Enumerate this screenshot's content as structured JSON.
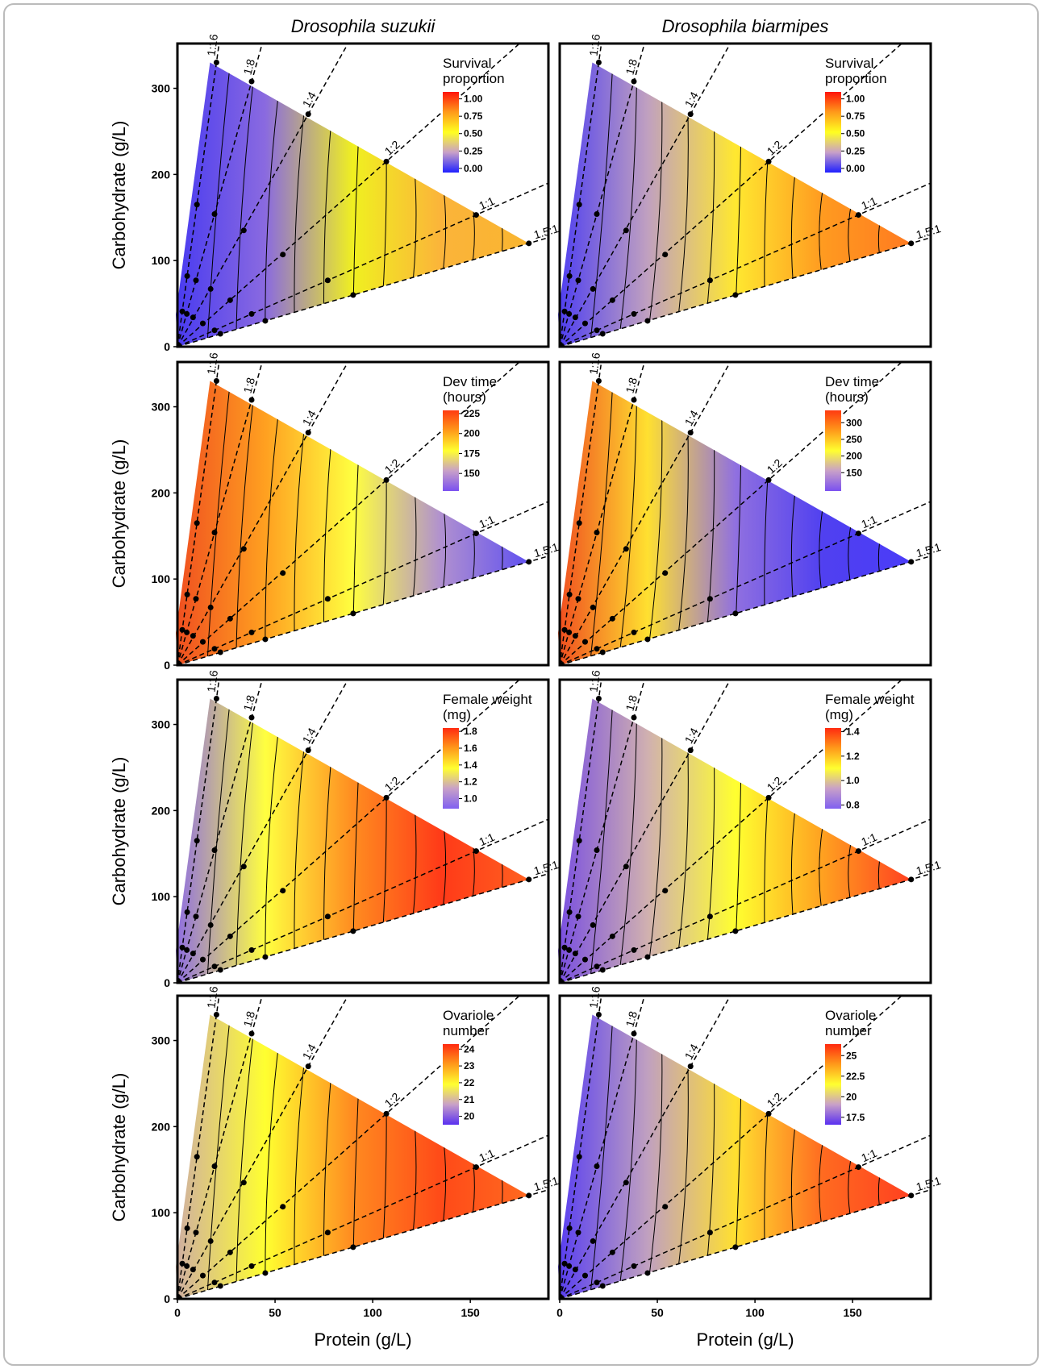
{
  "rails": [
    {
      "label": "1:16",
      "x": [
        2.5,
        5,
        10,
        20
      ],
      "y": [
        41,
        82,
        165,
        330
      ]
    },
    {
      "label": "1:8",
      "x": [
        4.8,
        9.5,
        19,
        38
      ],
      "y": [
        38,
        77,
        154,
        308
      ]
    },
    {
      "label": "1:4",
      "x": [
        8,
        17,
        34,
        67
      ],
      "y": [
        34,
        67,
        135,
        270
      ]
    },
    {
      "label": "1:2",
      "x": [
        13,
        27,
        54,
        107
      ],
      "y": [
        27,
        54,
        107,
        215
      ]
    },
    {
      "label": "1:1",
      "x": [
        19,
        38,
        77,
        153
      ],
      "y": [
        19,
        38,
        77,
        153
      ]
    },
    {
      "label": "1.5:1",
      "x": [
        22,
        45,
        90,
        180
      ],
      "y": [
        15,
        30,
        60,
        120
      ]
    }
  ],
  "chart_data": [
    {
      "type": "heatmap",
      "title": "Drosophila suzukii",
      "legend_title": [
        "Survival",
        "proportion"
      ],
      "xlim": [
        0,
        190
      ],
      "ylim": [
        0,
        352
      ],
      "ylabel": "Carbohydrate (g/L)",
      "yticks": [
        0,
        100,
        200,
        300
      ],
      "clim": [
        -0.06,
        1.1
      ],
      "cticks": [
        {
          "value": 1,
          "label": "1.00"
        },
        0.75,
        {
          "value": 0.5,
          "label": "0.50"
        },
        0.25,
        {
          "value": 0,
          "label": "0.00"
        }
      ],
      "colorbar": [
        "#ff140a",
        "#ff9a1a",
        "#ffff20",
        "#c8a0c8",
        "#2020ff"
      ],
      "fill_colors": [
        "#4a3cf0",
        "#8a6ae0",
        "#f0f020",
        "#fbb43a",
        "#f9b530"
      ]
    },
    {
      "type": "heatmap",
      "title": "Drosophila biarmipes",
      "legend_title": [
        "Survival",
        "proportion"
      ],
      "xlim": [
        0,
        190
      ],
      "ylim": [
        0,
        352
      ],
      "clim": [
        -0.06,
        1.1
      ],
      "cticks": [
        {
          "value": 1,
          "label": "1.00"
        },
        0.75,
        {
          "value": 0.5,
          "label": "0.50"
        },
        0.25,
        {
          "value": 0,
          "label": "0.00"
        }
      ],
      "colorbar": [
        "#ff140a",
        "#ff9a1a",
        "#ffff20",
        "#c8a0c8",
        "#2020ff"
      ],
      "fill_colors": [
        "#5040f0",
        "#c0a0c0",
        "#ffe830",
        "#ff9a20",
        "#ff7a20"
      ]
    },
    {
      "type": "heatmap",
      "legend_title": [
        "Dev time",
        "(hours)"
      ],
      "xlim": [
        0,
        190
      ],
      "ylim": [
        0,
        352
      ],
      "ylabel": "Carbohydrate (g/L)",
      "yticks": [
        0,
        100,
        200,
        300
      ],
      "clim": [
        128,
        229
      ],
      "cticks": [
        225,
        200,
        175,
        150
      ],
      "colorbar": [
        "#ff3a10",
        "#ff9a1a",
        "#ffff30",
        "#c8a0c8",
        "#7a50f0"
      ],
      "fill_colors": [
        "#f05020",
        "#ffa020",
        "#ffff40",
        "#b090d0",
        "#6050f0"
      ]
    },
    {
      "type": "heatmap",
      "legend_title": [
        "Dev time",
        "(hours)"
      ],
      "xlim": [
        0,
        190
      ],
      "ylim": [
        0,
        352
      ],
      "clim": [
        95,
        337
      ],
      "cticks": [
        300,
        250,
        200,
        150
      ],
      "colorbar": [
        "#ff3a10",
        "#ff9a1a",
        "#ffff30",
        "#c8a0c8",
        "#7a50f0"
      ],
      "fill_colors": [
        "#f05020",
        "#ffe030",
        "#9070e0",
        "#5040f0",
        "#4a3cf8"
      ]
    },
    {
      "type": "heatmap",
      "legend_title": [
        "Female weight",
        "(mg)"
      ],
      "xlim": [
        0,
        190
      ],
      "ylim": [
        0,
        352
      ],
      "ylabel": "Carbohydrate (g/L)",
      "yticks": [
        0,
        100,
        200,
        300
      ],
      "clim": [
        0.88,
        1.84
      ],
      "cticks": [
        1.8,
        1.6,
        1.4,
        1.2,
        {
          "value": 1,
          "label": "1.0"
        }
      ],
      "colorbar": [
        "#ff2a10",
        "#ff9a1a",
        "#ffff30",
        "#c8a0c8",
        "#8060f0"
      ],
      "fill_colors": [
        "#9070e0",
        "#ffff40",
        "#ff8c20",
        "#ff3a18",
        "#ff6020"
      ]
    },
    {
      "type": "heatmap",
      "legend_title": [
        "Female weight",
        "(mg)"
      ],
      "xlim": [
        0,
        190
      ],
      "ylim": [
        0,
        352
      ],
      "clim": [
        0.77,
        1.43
      ],
      "cticks": [
        1.4,
        1.2,
        {
          "value": 1,
          "label": "1.0"
        },
        0.8
      ],
      "colorbar": [
        "#ff2a10",
        "#ff9a1a",
        "#ffff30",
        "#c8a0c8",
        "#8060f0"
      ],
      "fill_colors": [
        "#7a50e0",
        "#d0b0b0",
        "#ffff30",
        "#ffa020",
        "#ff4020"
      ]
    },
    {
      "type": "heatmap",
      "legend_title": [
        "Ovariole",
        "number"
      ],
      "xlim": [
        0,
        190
      ],
      "ylim": [
        0,
        352
      ],
      "ylabel": "Carbohydrate (g/L)",
      "yticks": [
        0,
        100,
        200,
        300
      ],
      "xlabel": "Protein (g/L)",
      "xticks": [
        0,
        50,
        100,
        150
      ],
      "clim": [
        19.5,
        24.3
      ],
      "cticks": [
        24,
        23,
        22,
        21,
        20
      ],
      "colorbar": [
        "#ff2a10",
        "#ff9a1a",
        "#ffff30",
        "#c8a0c8",
        "#5a30f0"
      ],
      "fill_colors": [
        "#d0b0a0",
        "#ffff30",
        "#ff8a20",
        "#ff4a18",
        "#ff6a20"
      ]
    },
    {
      "type": "heatmap",
      "legend_title": [
        "Ovariole",
        "number"
      ],
      "xlim": [
        0,
        190
      ],
      "ylim": [
        0,
        352
      ],
      "xlabel": "Protein (g/L)",
      "xticks": [
        0,
        50,
        100,
        150
      ],
      "clim": [
        16.6,
        26.4
      ],
      "cticks": [
        25,
        22.5,
        20,
        17.5
      ],
      "colorbar": [
        "#ff2a10",
        "#ff9a1a",
        "#ffff30",
        "#c8a0c8",
        "#5a30f0"
      ],
      "fill_colors": [
        "#5a40f0",
        "#c0a0c0",
        "#ffe030",
        "#ff6a20",
        "#ff4020"
      ]
    }
  ]
}
